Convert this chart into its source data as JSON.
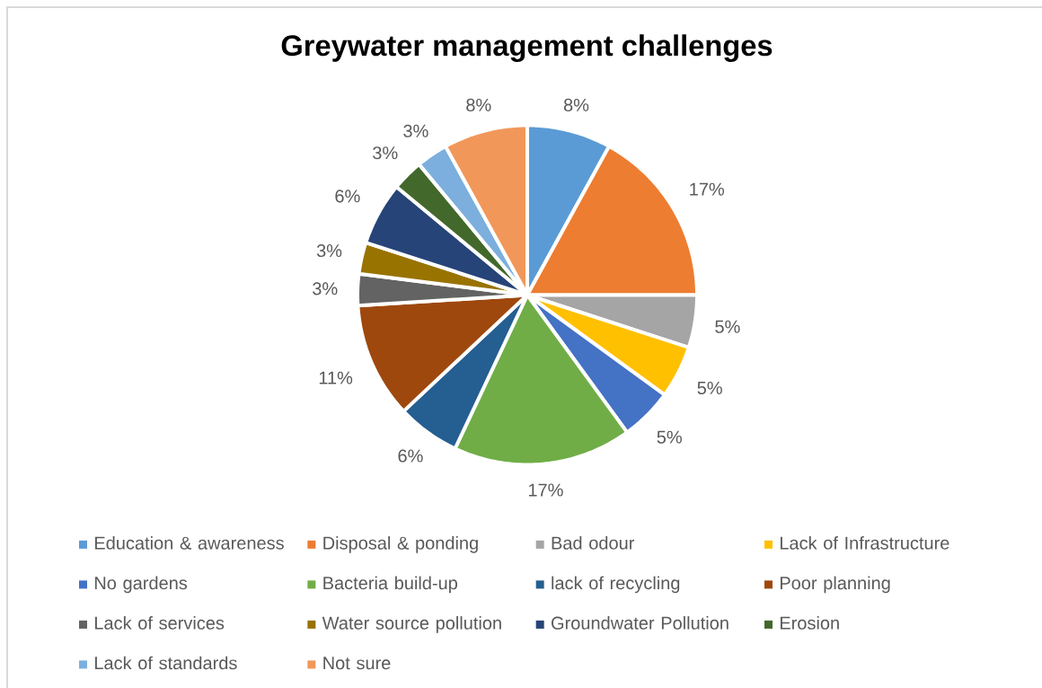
{
  "chart_data": {
    "type": "pie",
    "title": "Greywater management challenges",
    "categories": [
      "Education & awareness",
      "Disposal & ponding",
      "Bad odour",
      "Lack of Infrastructure",
      "No gardens",
      "Bacteria build-up",
      "lack of recycling",
      "Poor planning",
      "Lack of services",
      "Water source pollution",
      "Groundwater Pollution",
      "Erosion",
      "Lack of standards",
      "Not sure"
    ],
    "values": [
      8,
      17,
      5,
      5,
      5,
      17,
      6,
      11,
      3,
      3,
      6,
      3,
      3,
      8
    ],
    "value_labels": [
      "8%",
      "17%",
      "5%",
      "5%",
      "5%",
      "17%",
      "6%",
      "11%",
      "3%",
      "3%",
      "6%",
      "3%",
      "3%",
      "8%"
    ],
    "colors": [
      "#5b9bd5",
      "#ed7d31",
      "#a5a5a5",
      "#ffc000",
      "#4472c4",
      "#70ad47",
      "#255e91",
      "#9e480e",
      "#636363",
      "#997300",
      "#264478",
      "#43682b",
      "#7cafdd",
      "#f1975a"
    ],
    "legend": "bottom"
  }
}
